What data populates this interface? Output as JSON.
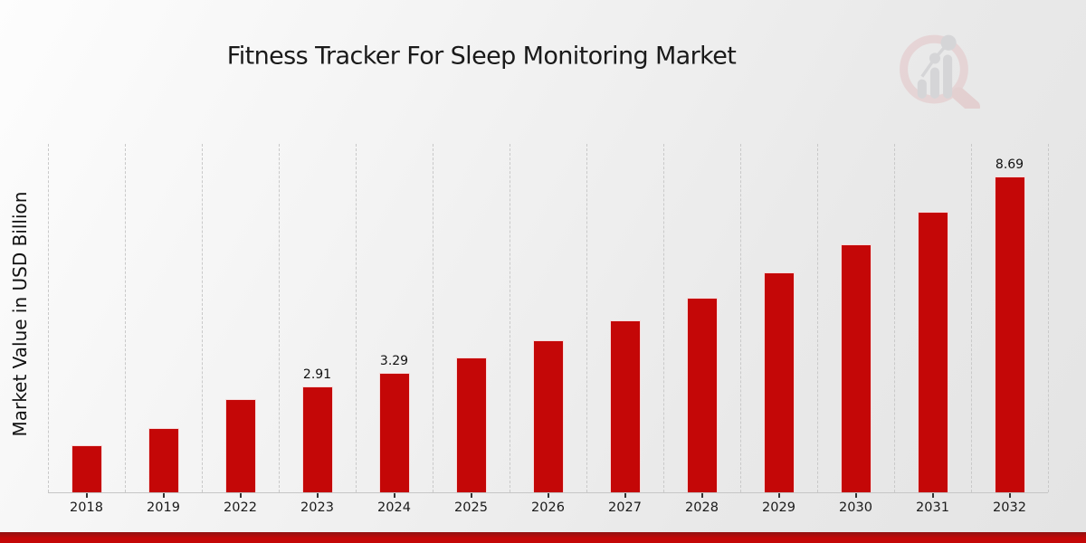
{
  "page": {
    "accent_red": "#c40707",
    "background_light": "#fdfdfd",
    "background_dark": "#e4e4e4"
  },
  "watermark": {
    "icon": "magnifier-bar-chart-logo",
    "ring_color": "#e3c4c6",
    "glyph_color": "#c6c6ca"
  },
  "footer": {
    "strip_color": "#c40707"
  },
  "chart_data": {
    "type": "bar",
    "title": "Fitness Tracker For Sleep Monitoring Market",
    "xlabel": "",
    "ylabel": "Market Value in USD Billion",
    "categories": [
      "2018",
      "2019",
      "2022",
      "2023",
      "2024",
      "2025",
      "2026",
      "2027",
      "2028",
      "2029",
      "2030",
      "2031",
      "2032"
    ],
    "values": [
      1.3,
      1.78,
      2.57,
      2.91,
      3.29,
      3.72,
      4.19,
      4.74,
      5.35,
      6.05,
      6.83,
      7.72,
      8.69
    ],
    "bar_labels": [
      "",
      "",
      "",
      "2.91",
      "3.29",
      "",
      "",
      "",
      "",
      "",
      "",
      "",
      "8.69"
    ],
    "bar_color": "#c40707",
    "ylim": [
      0,
      9.58
    ],
    "grid": "vertical-dashed",
    "gridline_color": "#c9c9c9",
    "legend_position": "none"
  }
}
